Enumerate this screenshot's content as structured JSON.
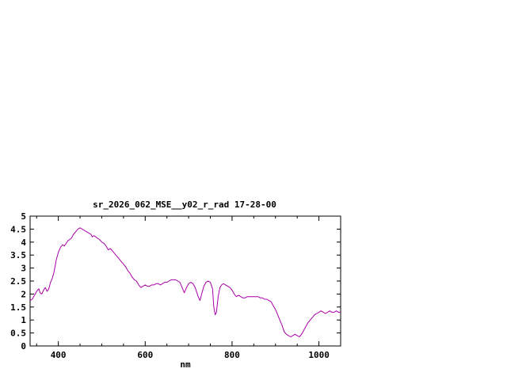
{
  "page": {
    "background": "#ffffff"
  },
  "chart_data": {
    "type": "line",
    "title": "sr_2026_062_MSE__y02_r_rad 17-28-00",
    "xlabel": "nm",
    "ylabel": "",
    "xlim": [
      335,
      1050
    ],
    "ylim": [
      0,
      5
    ],
    "x_major_ticks": [
      400,
      600,
      800,
      1000
    ],
    "x_minor_step": 50,
    "y_tick_step": 0.5,
    "y_tick_labels": [
      "0",
      "0.5",
      "1",
      "1.5",
      "2",
      "2.5",
      "3",
      "3.5",
      "4",
      "4.5",
      "5"
    ],
    "grid": false,
    "legend_position": "none",
    "line_color": "#a800a8",
    "axis_color": "#000000",
    "series": [
      {
        "name": "sr_2026_062_MSE__y02_r_rad",
        "x": [
          335,
          340,
          345,
          350,
          355,
          358,
          362,
          366,
          370,
          374,
          378,
          382,
          386,
          390,
          395,
          400,
          405,
          410,
          414,
          418,
          422,
          426,
          430,
          435,
          440,
          445,
          450,
          455,
          460,
          465,
          470,
          475,
          478,
          482,
          486,
          490,
          495,
          500,
          505,
          510,
          515,
          520,
          525,
          530,
          535,
          540,
          545,
          550,
          555,
          560,
          565,
          570,
          575,
          580,
          585,
          590,
          595,
          600,
          605,
          610,
          615,
          620,
          625,
          630,
          635,
          640,
          645,
          650,
          655,
          660,
          665,
          670,
          675,
          680,
          685,
          690,
          695,
          700,
          705,
          710,
          715,
          718,
          722,
          726,
          730,
          735,
          740,
          745,
          750,
          755,
          758,
          761,
          764,
          768,
          772,
          776,
          780,
          785,
          790,
          795,
          800,
          805,
          810,
          815,
          820,
          825,
          830,
          835,
          840,
          845,
          850,
          855,
          860,
          865,
          870,
          875,
          880,
          885,
          890,
          895,
          900,
          905,
          910,
          915,
          920,
          925,
          930,
          935,
          940,
          945,
          950,
          955,
          960,
          965,
          970,
          975,
          980,
          985,
          990,
          995,
          1000,
          1005,
          1010,
          1015,
          1020,
          1025,
          1030,
          1035,
          1040,
          1045,
          1050
        ],
        "y": [
          1.75,
          1.8,
          1.95,
          2.1,
          2.2,
          2.05,
          2.0,
          2.15,
          2.25,
          2.1,
          2.2,
          2.45,
          2.6,
          2.85,
          3.3,
          3.6,
          3.8,
          3.9,
          3.85,
          3.95,
          4.05,
          4.1,
          4.15,
          4.3,
          4.4,
          4.5,
          4.55,
          4.5,
          4.45,
          4.4,
          4.35,
          4.3,
          4.2,
          4.25,
          4.2,
          4.15,
          4.1,
          4.0,
          3.95,
          3.85,
          3.7,
          3.75,
          3.65,
          3.55,
          3.45,
          3.35,
          3.25,
          3.15,
          3.05,
          2.9,
          2.8,
          2.65,
          2.55,
          2.5,
          2.35,
          2.25,
          2.3,
          2.35,
          2.3,
          2.3,
          2.35,
          2.35,
          2.4,
          2.4,
          2.35,
          2.4,
          2.45,
          2.45,
          2.5,
          2.55,
          2.55,
          2.55,
          2.5,
          2.45,
          2.25,
          2.05,
          2.25,
          2.4,
          2.45,
          2.4,
          2.25,
          2.1,
          1.9,
          1.75,
          2.0,
          2.3,
          2.45,
          2.5,
          2.45,
          2.2,
          1.5,
          1.2,
          1.3,
          1.9,
          2.25,
          2.35,
          2.4,
          2.35,
          2.3,
          2.25,
          2.15,
          2.0,
          1.9,
          1.95,
          1.9,
          1.85,
          1.85,
          1.9,
          1.9,
          1.9,
          1.9,
          1.9,
          1.9,
          1.85,
          1.85,
          1.8,
          1.8,
          1.75,
          1.7,
          1.55,
          1.4,
          1.2,
          1.0,
          0.8,
          0.55,
          0.45,
          0.4,
          0.35,
          0.4,
          0.45,
          0.4,
          0.35,
          0.45,
          0.6,
          0.75,
          0.9,
          1.0,
          1.1,
          1.2,
          1.25,
          1.3,
          1.35,
          1.3,
          1.25,
          1.3,
          1.35,
          1.3,
          1.3,
          1.35,
          1.3,
          1.3
        ]
      }
    ]
  }
}
